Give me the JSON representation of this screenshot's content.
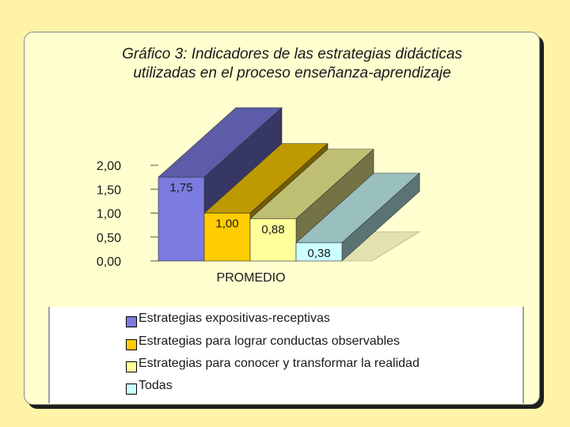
{
  "chart_data": {
    "type": "bar",
    "title_lines": [
      "Gráfico 3:  Indicadores de las estrategias didácticas",
      "utilizadas en el proceso enseñanza-aprendizaje"
    ],
    "categories": [
      "PROMEDIO"
    ],
    "xlabel": "",
    "ylabel": "",
    "ylim": [
      0,
      2
    ],
    "ytick_labels": [
      "0,00",
      "0,50",
      "1,00",
      "1,50",
      "2,00"
    ],
    "yticks": [
      0,
      0.5,
      1,
      1.5,
      2
    ],
    "grid": false,
    "legend_position": "bottom",
    "series": [
      {
        "name": "Estrategias expositivas-receptivas",
        "values": [
          1.75
        ],
        "label": "1,75",
        "color": "#7b7be0"
      },
      {
        "name": "Estrategias para lograr conductas observables",
        "values": [
          1.0
        ],
        "label": "1,00",
        "color": "#ffcc00"
      },
      {
        "name": "Estrategias para conocer y transformar la realidad",
        "values": [
          0.88
        ],
        "label": "0,88",
        "color": "#ffff99"
      },
      {
        "name": "Todas",
        "values": [
          0.38
        ],
        "label": "0,38",
        "color": "#ccffff"
      }
    ]
  }
}
